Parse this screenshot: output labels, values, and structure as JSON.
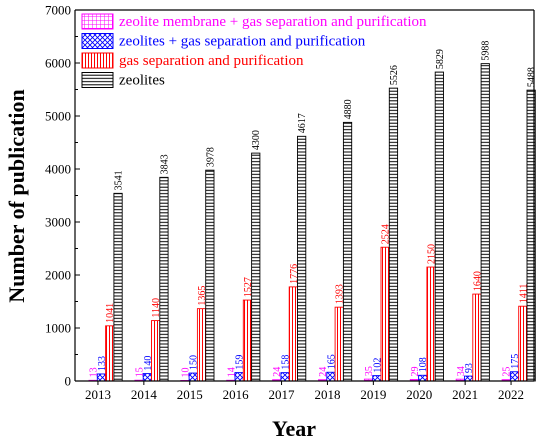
{
  "chart_data": {
    "type": "bar",
    "title": "",
    "xlabel": "Year",
    "ylabel": "Number of publication",
    "ylim": [
      0,
      7000
    ],
    "yticks": [
      0,
      1000,
      2000,
      3000,
      4000,
      5000,
      6000,
      7000
    ],
    "categories": [
      "2013",
      "2014",
      "2015",
      "2016",
      "2017",
      "2018",
      "2019",
      "2020",
      "2021",
      "2022"
    ],
    "grid": false,
    "legend_position": "top-left",
    "series": [
      {
        "name": "zeolite membrane + gas separation and purification",
        "color": "#ff00ff",
        "pattern": "grid",
        "values": [
          13,
          15,
          10,
          14,
          24,
          24,
          35,
          29,
          34,
          25
        ]
      },
      {
        "name": "zeolites + gas separation and purification",
        "color": "#0000ff",
        "pattern": "crosshatch",
        "values": [
          133,
          140,
          150,
          159,
          158,
          165,
          102,
          108,
          93,
          175
        ]
      },
      {
        "name": "gas separation and purification",
        "color": "#ff0000",
        "pattern": "vertical-lines",
        "values": [
          1041,
          1140,
          1365,
          1527,
          1776,
          1393,
          2524,
          2150,
          1640,
          1411
        ]
      },
      {
        "name": "zeolites",
        "color": "#000000",
        "pattern": "horizontal-lines",
        "values": [
          3541,
          3843,
          3978,
          4300,
          4617,
          4880,
          5526,
          5829,
          5988,
          5488
        ]
      }
    ]
  }
}
